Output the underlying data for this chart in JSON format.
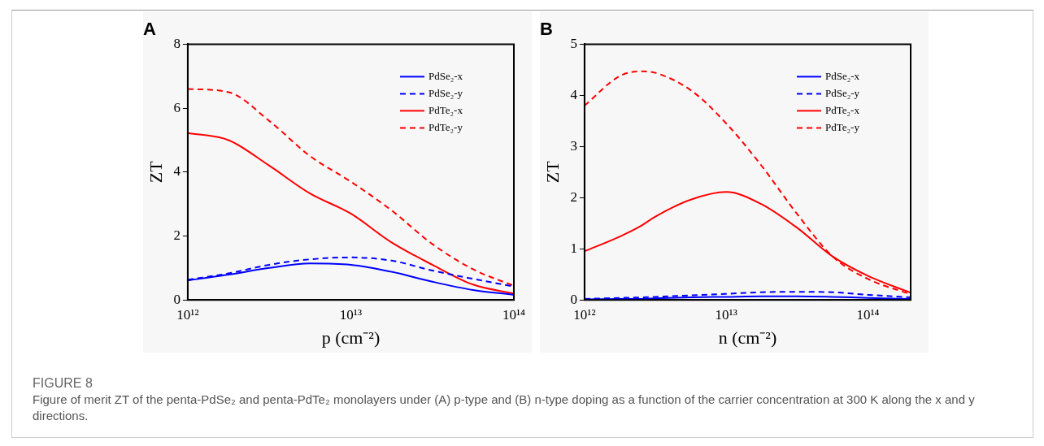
{
  "chart_data": [
    {
      "type": "line",
      "title": "A",
      "xlabel": "p (cm⁻²)",
      "ylabel": "ZT",
      "log": "x",
      "xlim": [
        1000000000000.0,
        100000000000000.0
      ],
      "xticks": [
        {
          "value": 1000000000000.0,
          "label": "10¹²"
        },
        {
          "value": 10000000000000.0,
          "label": "10¹³"
        },
        {
          "value": 100000000000000.0,
          "label": "10¹⁴"
        }
      ],
      "ylim": [
        0,
        8
      ],
      "yticks": [
        0,
        2,
        4,
        6,
        8
      ],
      "grid": false,
      "legend": "top right",
      "marker": "none",
      "x": [
        1000000000000.0,
        1778000000000.0,
        3162000000000.0,
        5623000000000.0,
        10000000000000.0,
        17780000000000.0,
        31620000000000.0,
        56230000000000.0,
        100000000000000.0
      ],
      "series": [
        {
          "name": "PdSe₂-x",
          "color": "#0000ff",
          "line_style": "solid",
          "values": [
            0.61,
            0.79,
            1.0,
            1.14,
            1.1,
            0.88,
            0.57,
            0.31,
            0.16
          ]
        },
        {
          "name": "PdSe₂-y",
          "color": "#0000ff",
          "line_style": "dashed",
          "values": [
            0.63,
            0.83,
            1.1,
            1.27,
            1.33,
            1.23,
            0.92,
            0.66,
            0.42
          ]
        },
        {
          "name": "PdTe₂-x",
          "color": "#ff0000",
          "line_style": "solid",
          "values": [
            5.22,
            5.0,
            4.2,
            3.33,
            2.7,
            1.8,
            1.1,
            0.48,
            0.2
          ]
        },
        {
          "name": "PdTe₂-y",
          "color": "#ff0000",
          "line_style": "dashed",
          "values": [
            6.6,
            6.5,
            5.6,
            4.5,
            3.7,
            2.8,
            1.75,
            0.96,
            0.44
          ]
        }
      ],
      "annotations": [
        "FIGURE 8",
        "Figure of merit ZT of the penta-PdSe₂ and penta-PdTe₂ monolayers under (A) p-type and (B) n-type doping as a function of the carrier concentration at 300 K along the x and y directions."
      ]
    },
    {
      "type": "line",
      "title": "B",
      "xlabel": "n (cm⁻²)",
      "ylabel": "ZT",
      "log": "x",
      "xlim": [
        1000000000000.0,
        200000000000000.0
      ],
      "xticks": [
        {
          "value": 1000000000000.0,
          "label": "10¹²"
        },
        {
          "value": 10000000000000.0,
          "label": "10¹³"
        },
        {
          "value": 100000000000000.0,
          "label": "10¹⁴"
        }
      ],
      "ylim": [
        0,
        5
      ],
      "yticks": [
        0,
        1,
        2,
        3,
        4,
        5
      ],
      "grid": false,
      "legend": "top right",
      "marker": "none",
      "x": [
        1000000000000.0,
        1778000000000.0,
        2512000000000.0,
        3162000000000.0,
        5623000000000.0,
        10000000000000.0,
        17780000000000.0,
        31620000000000.0,
        56230000000000.0,
        100000000000000.0,
        200000000000000.0
      ],
      "series": [
        {
          "name": "PdSe₂-x",
          "color": "#0000ff",
          "line_style": "solid",
          "values": [
            0.01,
            0.02,
            0.02,
            0.03,
            0.05,
            0.06,
            0.07,
            0.07,
            0.06,
            0.04,
            0.02
          ]
        },
        {
          "name": "PdSe₂-y",
          "color": "#0000ff",
          "line_style": "dashed",
          "values": [
            0.02,
            0.04,
            0.05,
            0.06,
            0.09,
            0.12,
            0.15,
            0.16,
            0.15,
            0.1,
            0.05
          ]
        },
        {
          "name": "PdTe₂-x",
          "color": "#ff0000",
          "line_style": "solid",
          "values": [
            0.95,
            1.24,
            1.45,
            1.63,
            1.96,
            2.11,
            1.87,
            1.41,
            0.85,
            0.47,
            0.14
          ]
        },
        {
          "name": "PdTe₂-y",
          "color": "#ff0000",
          "line_style": "dashed",
          "values": [
            3.8,
            4.38,
            4.47,
            4.44,
            4.1,
            3.45,
            2.62,
            1.68,
            0.85,
            0.41,
            0.11
          ]
        }
      ]
    }
  ]
}
